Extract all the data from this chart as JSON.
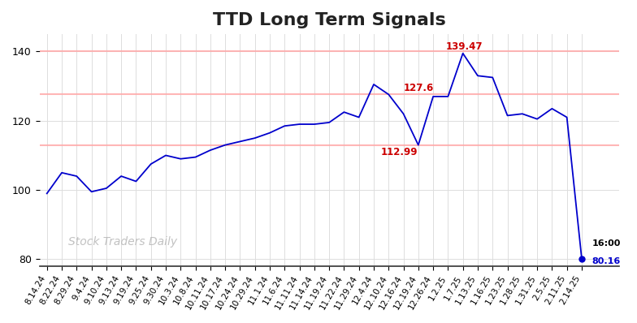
{
  "title": "TTD Long Term Signals",
  "title_fontsize": 16,
  "watermark": "Stock Traders Daily",
  "line_color": "#0000cc",
  "background_color": "#ffffff",
  "hline_color": "#ffaaaa",
  "hlines": [
    113.0,
    127.6,
    140.0
  ],
  "ylim": [
    78,
    145
  ],
  "yticks": [
    80,
    100,
    120,
    140
  ],
  "x_labels": [
    "8.14.24",
    "8.22.24",
    "8.29.24",
    "9.4.24",
    "9.10.24",
    "9.13.24",
    "9.19.24",
    "9.25.24",
    "9.30.24",
    "10.3.24",
    "10.8.24",
    "10.11.24",
    "10.17.24",
    "10.24.24",
    "10.29.24",
    "11.1.24",
    "11.6.24",
    "11.11.24",
    "11.14.24",
    "11.19.24",
    "11.22.24",
    "11.29.24",
    "12.4.24",
    "12.10.24",
    "12.16.24",
    "12.19.24",
    "12.26.24",
    "1.2.25",
    "1.7.25",
    "1.13.25",
    "1.16.25",
    "1.23.25",
    "1.28.25",
    "1.31.25",
    "2.5.25",
    "2.11.25",
    "2.14.25"
  ],
  "prices": [
    99.0,
    105.0,
    104.0,
    99.5,
    100.5,
    104.0,
    102.5,
    107.5,
    110.0,
    109.0,
    109.5,
    111.5,
    113.0,
    114.0,
    115.0,
    116.5,
    118.5,
    119.0,
    119.0,
    119.5,
    122.5,
    121.0,
    130.5,
    127.6,
    122.0,
    112.99,
    127.0,
    127.0,
    139.47,
    133.0,
    132.5,
    121.5,
    122.0,
    120.5,
    123.5,
    121.0,
    80.16
  ],
  "ann_139": {
    "xi": 28,
    "y": 139.47,
    "text": "139.47"
  },
  "ann_127": {
    "xi": 23,
    "y": 127.6,
    "text": "127.6"
  },
  "ann_113": {
    "xi": 25,
    "y": 112.99,
    "text": "112.99"
  },
  "ann_red_color": "#cc0000",
  "ann_end_price": "80.16",
  "ann_end_time": "16:00"
}
